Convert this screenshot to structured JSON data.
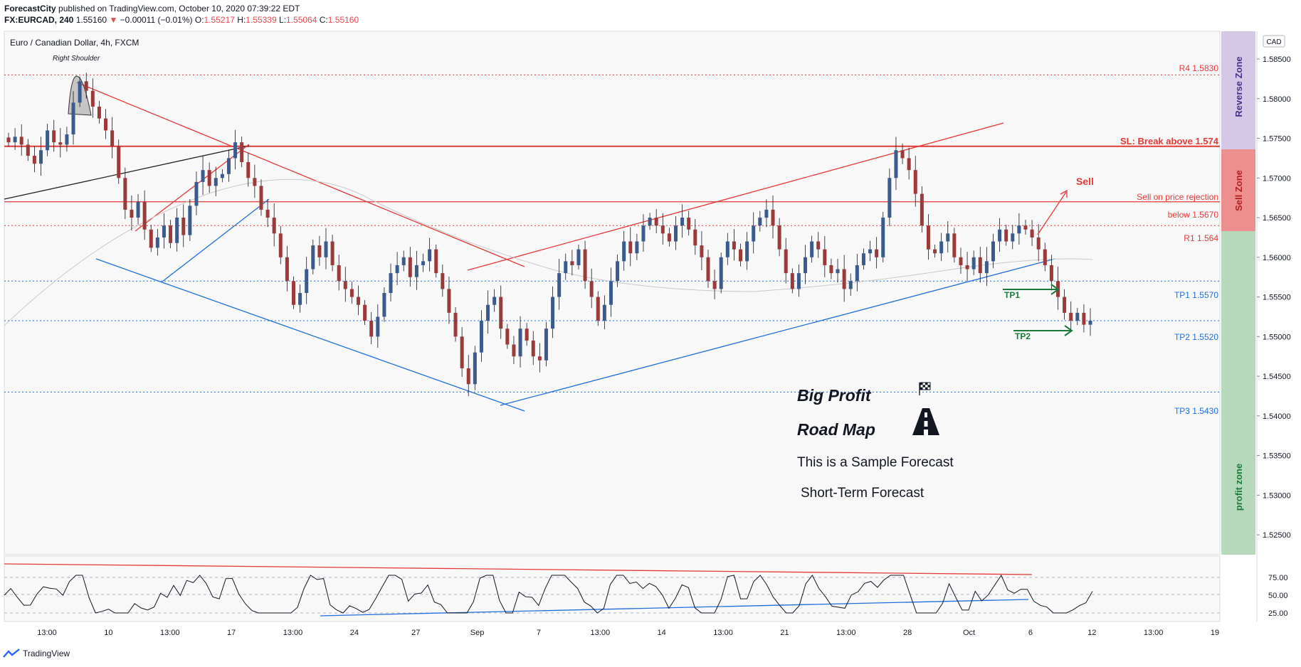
{
  "header": {
    "publisher": "ForecastCity",
    "published_text": "published on TradingView.com, October 10, 2020 07:39:22 EDT",
    "symbol": "FX:EURCAD, 240",
    "last": "1.55160",
    "change": "−0.00011 (−0.01%)",
    "o_label": "O:",
    "o": "1.55217",
    "h_label": "H:",
    "h": "1.55339",
    "l_label": "L:",
    "l": "1.55064",
    "c_label": "C:",
    "c": "1.55160"
  },
  "chart_title": "Euro / Canadian Dollar, 4h, FXCM",
  "currency_badge": "CAD",
  "annotations": {
    "right_shoulder": "Right Shoulder",
    "r4": "R4 1.5830",
    "sl": "SL: Break above 1.574",
    "sell": "Sell",
    "sell_rejection": "Sell on price rejection",
    "below": "below  1.5670",
    "r1": "R1 1.564",
    "tp1_line": "TP1 1.5570",
    "tp2_line": "TP2 1.5520",
    "tp3_line": "TP3 1.5430",
    "tp1": "TP1",
    "tp2": "TP2",
    "big_profit": "Big Profit",
    "road_map": "Road Map",
    "sample": "This is a Sample Forecast",
    "short_term": "Short-Term Forecast"
  },
  "zones": {
    "reverse": "Reverse Zone",
    "sell": "Sell Zone",
    "profit": "profit zone",
    "colors": {
      "reverse": "#d4c8e6",
      "sell": "#ee8f8f",
      "profit": "#b7d9bb"
    }
  },
  "colors": {
    "up": "#3b5b8c",
    "down": "#9c3a3a",
    "resistance": "#e53935",
    "support": "#1e6fd9",
    "target_arrow": "#1b7a3a"
  },
  "chart_data": {
    "type": "candlestick",
    "title": "Euro / Canadian Dollar, 4h, FXCM",
    "y_axis": {
      "min": 1.5225,
      "max": 1.5885,
      "ticks": [
        "1.58500",
        "1.58000",
        "1.57500",
        "1.57000",
        "1.56500",
        "1.56000",
        "1.55500",
        "1.55000",
        "1.54500",
        "1.54000",
        "1.53500",
        "1.53000",
        "1.52500"
      ]
    },
    "x_ticks": [
      "13:00",
      "10",
      "13:00",
      "17",
      "13:00",
      "24",
      "27",
      "Sep",
      "7",
      "13:00",
      "14",
      "13:00",
      "21",
      "13:00",
      "28",
      "Oct",
      "6",
      "12",
      "13:00",
      "19"
    ],
    "levels": [
      {
        "name": "R4",
        "value": 1.583
      },
      {
        "name": "SL",
        "value": 1.574
      },
      {
        "name": "Sell below",
        "value": 1.567
      },
      {
        "name": "R1",
        "value": 1.564
      },
      {
        "name": "TP1",
        "value": 1.557
      },
      {
        "name": "TP2",
        "value": 1.552
      },
      {
        "name": "TP3",
        "value": 1.543
      }
    ],
    "close_path": [
      1.5745,
      1.5752,
      1.5742,
      1.5728,
      1.5718,
      1.5735,
      1.576,
      1.5745,
      1.5742,
      1.5755,
      1.5795,
      1.5822,
      1.581,
      1.579,
      1.5775,
      1.576,
      1.574,
      1.57,
      1.566,
      1.565,
      1.567,
      1.5635,
      1.5612,
      1.5625,
      1.564,
      1.5618,
      1.565,
      1.5628,
      1.5665,
      1.5695,
      1.571,
      1.569,
      1.57,
      1.5705,
      1.5725,
      1.5745,
      1.572,
      1.57,
      1.569,
      1.566,
      1.565,
      1.563,
      1.56,
      1.557,
      1.554,
      1.5555,
      1.5585,
      1.5615,
      1.56,
      1.562,
      1.559,
      1.557,
      1.556,
      1.555,
      1.554,
      1.552,
      1.55,
      1.5525,
      1.5555,
      1.558,
      1.559,
      1.56,
      1.5575,
      1.559,
      1.5595,
      1.561,
      1.558,
      1.556,
      1.553,
      1.55,
      1.546,
      1.544,
      1.548,
      1.552,
      1.554,
      1.555,
      1.551,
      1.549,
      1.5475,
      1.551,
      1.5495,
      1.5475,
      1.547,
      1.551,
      1.555,
      1.558,
      1.5595,
      1.559,
      1.561,
      1.557,
      1.555,
      1.552,
      1.554,
      1.557,
      1.5595,
      1.562,
      1.5605,
      1.562,
      1.564,
      1.565,
      1.564,
      1.563,
      1.562,
      1.564,
      1.565,
      1.5635,
      1.5615,
      1.56,
      1.557,
      1.556,
      1.56,
      1.562,
      1.561,
      1.5595,
      1.562,
      1.564,
      1.565,
      1.566,
      1.564,
      1.561,
      1.558,
      1.556,
      1.558,
      1.56,
      1.562,
      1.561,
      1.559,
      1.558,
      1.5585,
      1.556,
      1.557,
      1.559,
      1.5605,
      1.561,
      1.56,
      1.565,
      1.57,
      1.5735,
      1.5725,
      1.571,
      1.568,
      1.564,
      1.561,
      1.5605,
      1.562,
      1.563,
      1.56,
      1.559,
      1.5585,
      1.56,
      1.558,
      1.5595,
      1.562,
      1.5635,
      1.562,
      1.563,
      1.564,
      1.5635,
      1.5625,
      1.561,
      1.559,
      1.557,
      1.555,
      1.553,
      1.552,
      1.553,
      1.5515,
      1.552
    ]
  },
  "rsi": {
    "ticks": [
      "75.00",
      "50.00",
      "25.00"
    ]
  },
  "footer": {
    "brand": "TradingView"
  }
}
